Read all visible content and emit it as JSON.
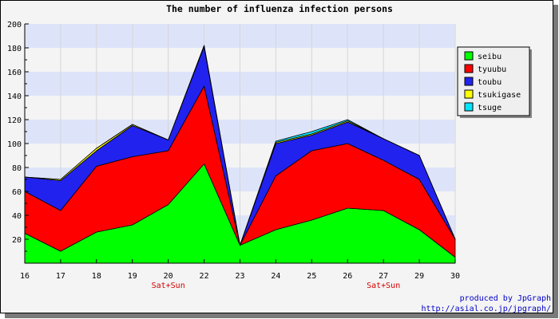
{
  "chart_data": {
    "type": "area",
    "stacked": true,
    "title": "The number of influenza infection persons",
    "categories": [
      "16",
      "17",
      "18",
      "19",
      "20",
      "22",
      "23",
      "24",
      "25",
      "26",
      "27",
      "29",
      "30"
    ],
    "sublabels": [
      "",
      "",
      "",
      "",
      "Sat+Sun",
      "",
      "",
      "",
      "",
      "",
      "Sat+Sun",
      "",
      ""
    ],
    "ylim": [
      0,
      200
    ],
    "yticks": [
      20,
      40,
      60,
      80,
      100,
      120,
      140,
      160,
      180,
      200
    ],
    "grid": true,
    "legend_position": "right",
    "series": [
      {
        "name": "seibu",
        "color": "#00ff00",
        "values": [
          25,
          10,
          26,
          32,
          49,
          83,
          15,
          28,
          36,
          46,
          44,
          28,
          5
        ]
      },
      {
        "name": "tyuubu",
        "color": "#ff0000",
        "values": [
          35,
          34,
          55,
          57,
          45,
          65,
          0,
          45,
          58,
          54,
          42,
          42,
          15
        ]
      },
      {
        "name": "toubu",
        "color": "#2222ee",
        "values": [
          12,
          25,
          13,
          26,
          9,
          33,
          0,
          27,
          13,
          18,
          18,
          20,
          0
        ]
      },
      {
        "name": "tsukigase",
        "color": "#ffff00",
        "values": [
          0,
          1,
          2,
          1,
          0,
          1,
          0,
          1,
          1,
          1,
          0,
          0,
          0
        ]
      },
      {
        "name": "tsuge",
        "color": "#00e5ff",
        "values": [
          0,
          0,
          0,
          0,
          0,
          0,
          0,
          1,
          2,
          1,
          0,
          0,
          0
        ]
      }
    ]
  },
  "credits": {
    "line1": "produced by JpGraph",
    "line2": "http://asial.co.jp/jpgraph/"
  }
}
